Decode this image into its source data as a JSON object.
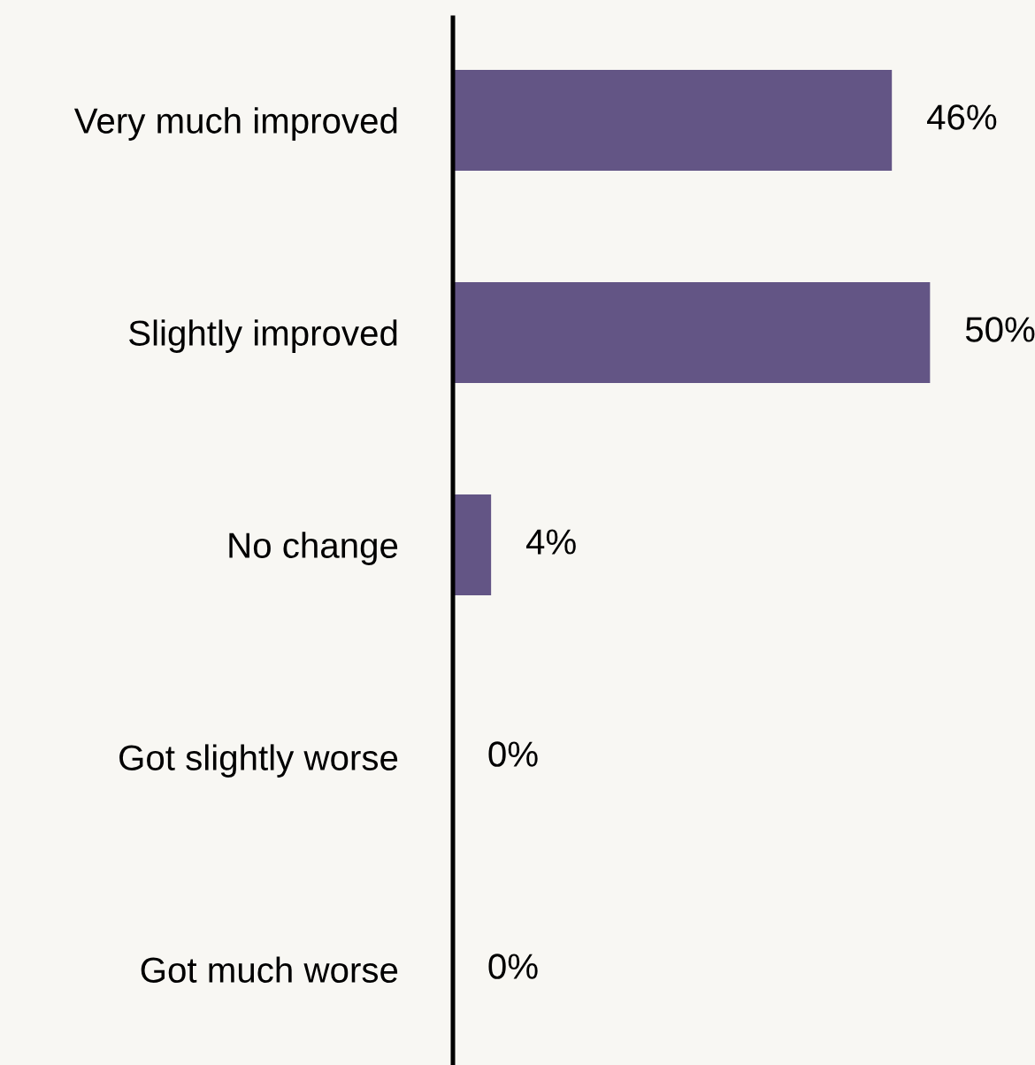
{
  "chart_data": {
    "type": "bar",
    "orientation": "horizontal",
    "categories": [
      "Very much improved",
      "Slightly improved",
      "No change",
      "Got slightly worse",
      "Got much worse"
    ],
    "values": [
      46,
      50,
      4,
      0,
      0
    ],
    "value_labels": [
      "46%",
      "50%",
      "4%",
      "0%",
      "0%"
    ],
    "color": "#635585",
    "xlim": [
      0,
      61
    ],
    "tick_labels": "y",
    "grid": false
  }
}
